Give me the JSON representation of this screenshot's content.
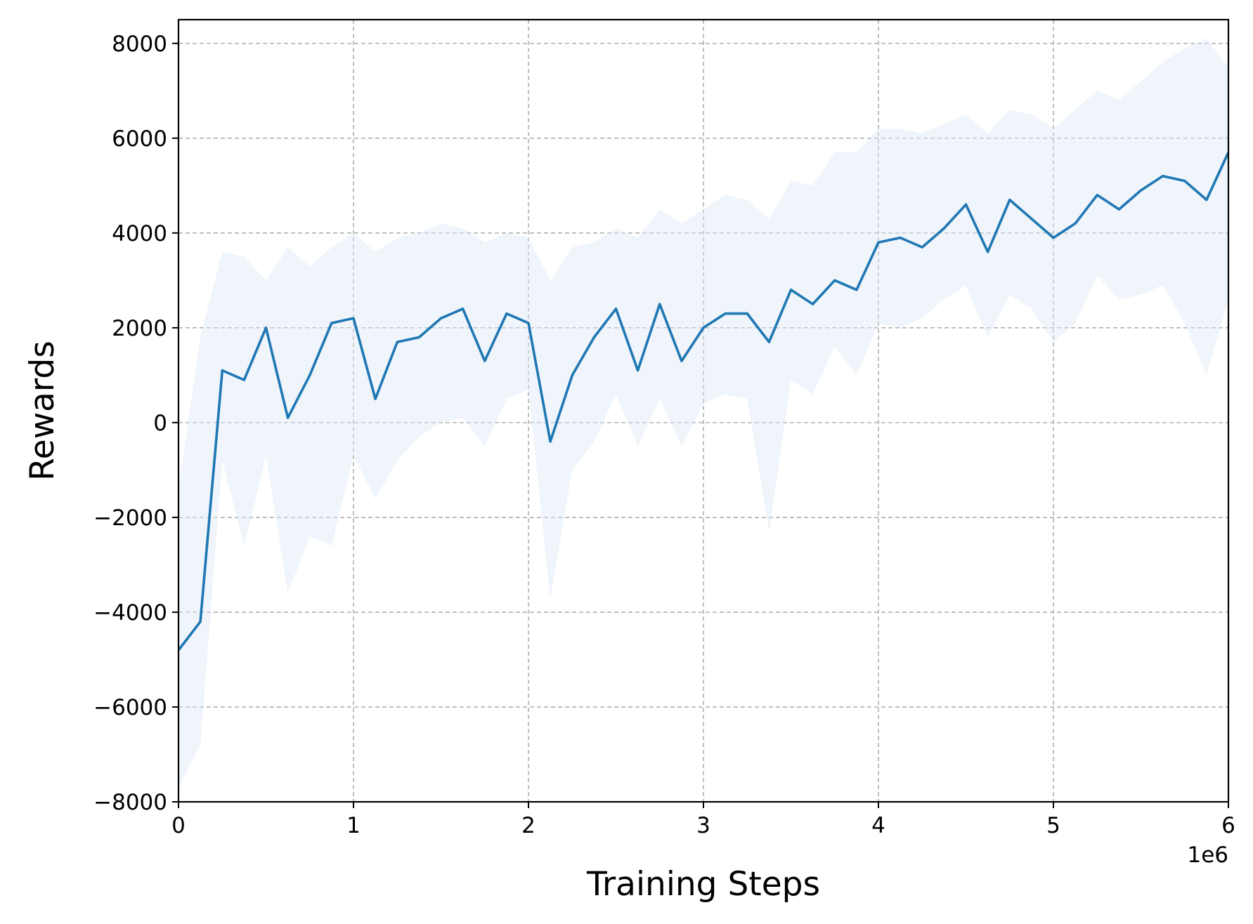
{
  "chart_data": {
    "type": "line",
    "title": "",
    "xlabel": "Training Steps",
    "ylabel": "Rewards",
    "x_offset_label": "1e6",
    "xlim": [
      0,
      6000000
    ],
    "ylim": [
      -8000,
      8500
    ],
    "x_ticks": [
      0,
      1000000,
      2000000,
      3000000,
      4000000,
      5000000,
      6000000
    ],
    "x_tick_labels": [
      "0",
      "1",
      "2",
      "3",
      "4",
      "5",
      "6"
    ],
    "y_ticks": [
      -8000,
      -6000,
      -4000,
      -2000,
      0,
      2000,
      4000,
      6000,
      8000
    ],
    "y_tick_labels": [
      "−8000",
      "−6000",
      "−4000",
      "−2000",
      "0",
      "2000",
      "4000",
      "6000",
      "8000"
    ],
    "grid": true,
    "line_color": "#1f77b4",
    "band_color": "#dce9f4",
    "series": [
      {
        "x": [
          0,
          125000,
          250000,
          375000,
          500000,
          625000,
          750000,
          875000,
          1000000,
          1125000,
          1250000,
          1375000,
          1500000,
          1625000,
          1750000,
          1875000,
          2000000,
          2125000,
          2250000,
          2375000,
          2500000,
          2625000,
          2750000,
          2875000,
          3000000,
          3125000,
          3250000,
          3375000,
          3500000,
          3625000,
          3750000,
          3875000,
          4000000,
          4125000,
          4250000,
          4375000,
          4500000,
          4625000,
          4750000,
          4875000,
          5000000,
          5125000,
          5250000,
          5375000,
          5500000,
          5625000,
          5750000,
          5875000,
          6000000
        ],
        "y": [
          -4800,
          -4200,
          1100,
          900,
          2000,
          100,
          1000,
          2100,
          2200,
          500,
          1700,
          1800,
          2200,
          2400,
          1300,
          2300,
          2100,
          -400,
          1000,
          1800,
          2400,
          1100,
          2500,
          1300,
          2000,
          2300,
          2300,
          1700,
          2800,
          2500,
          3000,
          2800,
          3800,
          3900,
          3700,
          4100,
          4600,
          3600,
          4700,
          4300,
          3900,
          4200,
          4800,
          4500,
          4900,
          5200,
          5100,
          4700,
          5700
        ],
        "lower": [
          -7700,
          -6800,
          -800,
          -2600,
          -700,
          -3600,
          -2400,
          -2600,
          -700,
          -1600,
          -800,
          -300,
          0,
          100,
          -500,
          500,
          700,
          -3700,
          -1000,
          -400,
          600,
          -500,
          500,
          -500,
          400,
          600,
          500,
          -2300,
          900,
          600,
          1600,
          1000,
          2100,
          2000,
          2200,
          2600,
          2900,
          1800,
          2700,
          2400,
          1700,
          2100,
          3100,
          2600,
          2700,
          2900,
          2100,
          1000,
          2600
        ],
        "upper": [
          -1400,
          1800,
          3600,
          3500,
          3000,
          3700,
          3300,
          3700,
          4000,
          3600,
          3900,
          4000,
          4200,
          4100,
          3800,
          4000,
          3900,
          3000,
          3700,
          3800,
          4100,
          3900,
          4500,
          4200,
          4500,
          4800,
          4700,
          4300,
          5100,
          5000,
          5700,
          5700,
          6200,
          6200,
          6100,
          6300,
          6500,
          6100,
          6600,
          6500,
          6200,
          6600,
          7000,
          6800,
          7200,
          7600,
          7900,
          8100,
          7500
        ]
      }
    ]
  }
}
